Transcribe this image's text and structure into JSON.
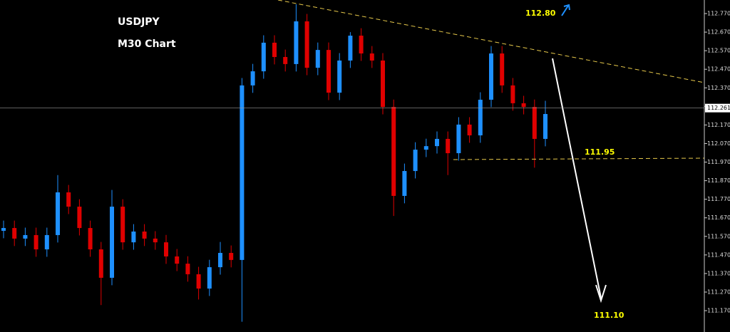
{
  "chart_data": {
    "type": "candlestick",
    "title": "USDJPY",
    "subtitle": "M30 Chart",
    "annotations": [
      "112.80",
      "111.95",
      "111.10"
    ],
    "current_price": 112.261,
    "up_color": "#1e90ff",
    "down_color": "#e00000",
    "ylim": [
      111.055,
      112.843
    ],
    "yticks": [
      {
        "value": 112.77,
        "label": "112.770"
      },
      {
        "value": 112.67,
        "label": "112.670"
      },
      {
        "value": 112.57,
        "label": "112.570"
      },
      {
        "value": 112.47,
        "label": "112.470"
      },
      {
        "value": 112.37,
        "label": "112.370"
      },
      {
        "value": 112.27,
        "label": "112.270"
      },
      {
        "value": 112.17,
        "label": "112.170"
      },
      {
        "value": 112.07,
        "label": "112.070"
      },
      {
        "value": 111.97,
        "label": "111.970"
      },
      {
        "value": 111.87,
        "label": "111.870"
      },
      {
        "value": 111.77,
        "label": "111.770"
      },
      {
        "value": 111.67,
        "label": "111.670"
      },
      {
        "value": 111.57,
        "label": "111.570"
      },
      {
        "value": 111.47,
        "label": "111.470"
      },
      {
        "value": 111.37,
        "label": "111.370"
      },
      {
        "value": 111.27,
        "label": "111.270"
      },
      {
        "value": 111.17,
        "label": "111.170"
      }
    ],
    "open": [
      111.6,
      111.615,
      111.558,
      111.577,
      111.5,
      111.577,
      111.807,
      111.73,
      111.615,
      111.5,
      111.347,
      111.73,
      111.538,
      111.596,
      111.558,
      111.538,
      111.462,
      111.423,
      111.366,
      111.289,
      111.404,
      111.481,
      111.443,
      112.383,
      112.459,
      112.613,
      112.536,
      112.498,
      112.728,
      112.478,
      112.574,
      112.344,
      112.517,
      112.651,
      112.555,
      112.517,
      112.267,
      111.788,
      111.922,
      112.037,
      112.056,
      112.095,
      112.018,
      112.172,
      112.114,
      112.306,
      112.555,
      112.383,
      112.287,
      112.267,
      112.095
    ],
    "high": [
      111.655,
      111.655,
      111.617,
      111.617,
      111.617,
      111.9,
      111.847,
      111.77,
      111.655,
      111.54,
      111.82,
      111.77,
      111.636,
      111.636,
      111.598,
      111.578,
      111.502,
      111.463,
      111.406,
      111.444,
      111.54,
      111.521,
      112.423,
      112.499,
      112.653,
      112.653,
      112.576,
      112.82,
      112.768,
      112.614,
      112.614,
      112.557,
      112.67,
      112.691,
      112.595,
      112.557,
      112.307,
      111.962,
      112.077,
      112.096,
      112.135,
      112.135,
      112.212,
      112.212,
      112.346,
      112.595,
      112.595,
      112.423,
      112.327,
      112.307,
      112.3
    ],
    "low": [
      111.56,
      111.518,
      111.518,
      111.46,
      111.46,
      111.537,
      111.69,
      111.575,
      111.46,
      111.2,
      111.307,
      111.498,
      111.498,
      111.518,
      111.498,
      111.422,
      111.383,
      111.326,
      111.23,
      111.249,
      111.364,
      111.403,
      111.11,
      112.343,
      112.419,
      112.496,
      112.458,
      112.458,
      112.438,
      112.438,
      112.304,
      112.304,
      112.477,
      112.515,
      112.477,
      112.227,
      111.68,
      111.748,
      111.882,
      111.997,
      112.016,
      111.9,
      111.978,
      112.074,
      112.074,
      112.266,
      112.343,
      112.247,
      112.227,
      111.94,
      112.055
    ],
    "close": [
      111.615,
      111.558,
      111.577,
      111.5,
      111.577,
      111.807,
      111.73,
      111.615,
      111.5,
      111.347,
      111.73,
      111.538,
      111.596,
      111.558,
      111.538,
      111.462,
      111.423,
      111.366,
      111.289,
      111.404,
      111.481,
      111.443,
      112.383,
      112.459,
      112.613,
      112.536,
      112.498,
      112.728,
      112.478,
      112.574,
      112.344,
      112.517,
      112.651,
      112.555,
      112.517,
      112.267,
      111.788,
      111.922,
      112.037,
      112.056,
      112.095,
      112.018,
      112.172,
      112.114,
      112.306,
      112.555,
      112.383,
      112.287,
      112.267,
      112.095,
      112.229
    ]
  }
}
